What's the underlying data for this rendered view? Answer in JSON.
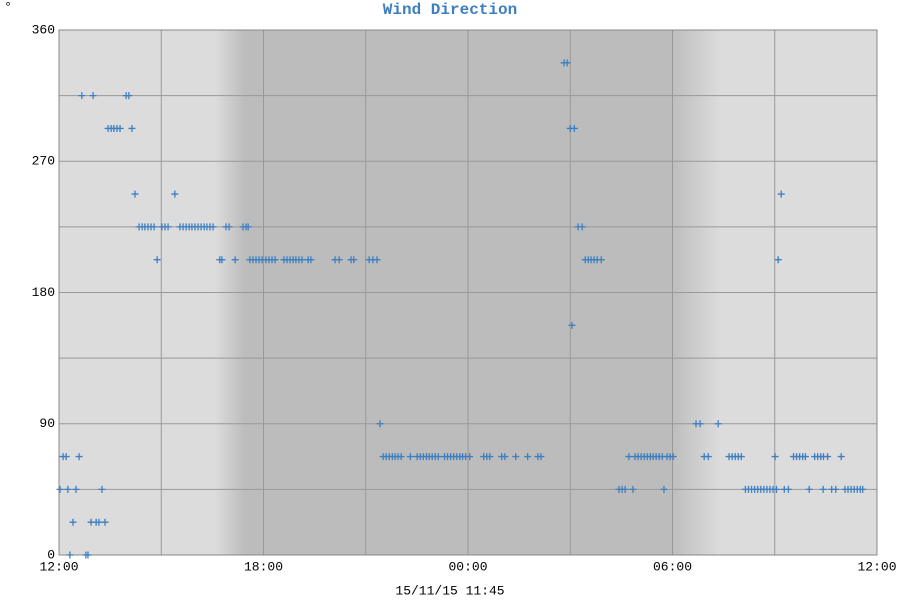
{
  "chart_data": {
    "type": "scatter",
    "title": "Wind Direction",
    "ylabel": "°",
    "xlabel": "15/11/15 11:45",
    "color": "#3d7fc1",
    "grid": true,
    "xlim": [
      0,
      24
    ],
    "ylim": [
      0,
      360
    ],
    "xticks": [
      {
        "value": 0,
        "label": "12:00"
      },
      {
        "value": 6,
        "label": "18:00"
      },
      {
        "value": 12,
        "label": "00:00"
      },
      {
        "value": 18,
        "label": "06:00"
      },
      {
        "value": 24,
        "label": "12:00"
      }
    ],
    "xminorticks": [
      3,
      9,
      15,
      21
    ],
    "yticks": [
      0,
      90,
      180,
      270,
      360
    ],
    "yminorticks": [
      45,
      135,
      225,
      315
    ],
    "x": [
      0.03,
      0.12,
      0.21,
      0.26,
      0.32,
      0.41,
      0.5,
      0.59,
      0.67,
      0.79,
      0.85,
      0.94,
      1.0,
      1.09,
      1.17,
      1.26,
      1.35,
      1.44,
      1.53,
      1.61,
      1.7,
      1.79,
      1.97,
      2.05,
      2.14,
      2.23,
      2.35,
      2.44,
      2.52,
      2.61,
      2.7,
      2.79,
      2.88,
      3.02,
      3.11,
      3.2,
      3.4,
      3.55,
      3.64,
      3.73,
      3.82,
      3.9,
      3.99,
      4.08,
      4.17,
      4.26,
      4.34,
      4.43,
      4.52,
      4.72,
      4.78,
      4.9,
      4.99,
      5.17,
      5.4,
      5.49,
      5.55,
      5.6,
      5.69,
      5.78,
      5.87,
      5.96,
      6.07,
      6.16,
      6.25,
      6.34,
      6.6,
      6.69,
      6.78,
      6.87,
      6.95,
      7.04,
      7.13,
      7.31,
      7.39,
      8.1,
      8.22,
      8.57,
      8.65,
      9.1,
      9.21,
      9.33,
      9.42,
      9.51,
      9.6,
      9.69,
      9.78,
      9.86,
      9.95,
      10.04,
      10.31,
      10.51,
      10.6,
      10.69,
      10.78,
      10.86,
      10.95,
      11.04,
      11.13,
      11.31,
      11.4,
      11.49,
      11.58,
      11.67,
      11.76,
      11.84,
      11.93,
      12.05,
      12.46,
      12.55,
      12.64,
      12.99,
      13.08,
      13.4,
      13.75,
      14.05,
      14.14,
      14.82,
      14.91,
      15.0,
      15.05,
      15.12,
      15.23,
      15.35,
      15.44,
      15.53,
      15.61,
      15.7,
      15.79,
      15.91,
      16.43,
      16.52,
      16.61,
      16.72,
      16.84,
      16.9,
      16.99,
      17.08,
      17.17,
      17.26,
      17.35,
      17.43,
      17.52,
      17.61,
      17.7,
      17.75,
      17.84,
      17.93,
      18.02,
      18.69,
      18.81,
      18.93,
      19.05,
      19.34,
      19.66,
      19.75,
      19.84,
      19.93,
      20.02,
      20.14,
      20.23,
      20.32,
      20.41,
      20.5,
      20.59,
      20.68,
      20.77,
      20.86,
      20.95,
      21.01,
      21.05,
      21.1,
      21.19,
      21.28,
      21.4,
      21.55,
      21.64,
      21.73,
      21.82,
      21.9,
      22.01,
      22.17,
      22.26,
      22.35,
      22.42,
      22.43,
      22.55,
      22.67,
      22.79,
      22.95,
      23.06,
      23.15,
      23.24,
      23.33,
      23.42,
      23.51,
      23.58
    ],
    "values": [
      45,
      67.5,
      67.5,
      45,
      0,
      22.5,
      45,
      67.5,
      315,
      0,
      0,
      22.5,
      315,
      22.5,
      22.5,
      45,
      22.5,
      292.5,
      292.5,
      292.5,
      292.5,
      292.5,
      315,
      315,
      292.5,
      247.5,
      225,
      225,
      225,
      225,
      225,
      225,
      202.5,
      225,
      225,
      225,
      247.5,
      225,
      225,
      225,
      225,
      225,
      225,
      225,
      225,
      225,
      225,
      225,
      225,
      202.5,
      202.5,
      225,
      225,
      202.5,
      225,
      225,
      225,
      202.5,
      202.5,
      202.5,
      202.5,
      202.5,
      202.5,
      202.5,
      202.5,
      202.5,
      202.5,
      202.5,
      202.5,
      202.5,
      202.5,
      202.5,
      202.5,
      202.5,
      202.5,
      202.5,
      202.5,
      202.5,
      202.5,
      202.5,
      202.5,
      202.5,
      90,
      67.5,
      67.5,
      67.5,
      67.5,
      67.5,
      67.5,
      67.5,
      67.5,
      67.5,
      67.5,
      67.5,
      67.5,
      67.5,
      67.5,
      67.5,
      67.5,
      67.5,
      67.5,
      67.5,
      67.5,
      67.5,
      67.5,
      67.5,
      67.5,
      67.5,
      67.5,
      67.5,
      67.5,
      67.5,
      67.5,
      67.5,
      67.5,
      67.5,
      67.5,
      337.5,
      337.5,
      292.5,
      157.5,
      292.5,
      225,
      225,
      202.5,
      202.5,
      202.5,
      202.5,
      202.5,
      202.5,
      45,
      45,
      45,
      67.5,
      45,
      67.5,
      67.5,
      67.5,
      67.5,
      67.5,
      67.5,
      67.5,
      67.5,
      67.5,
      67.5,
      45,
      67.5,
      67.5,
      67.5,
      90,
      90,
      67.5,
      67.5,
      90,
      67.5,
      67.5,
      67.5,
      67.5,
      67.5,
      45,
      45,
      45,
      45,
      45,
      45,
      45,
      45,
      45,
      45,
      67.5,
      45,
      202.5,
      247.5,
      45,
      45,
      67.5,
      67.5,
      67.5,
      67.5,
      67.5,
      45,
      67.5,
      67.5,
      67.5,
      45,
      67.5,
      67.5,
      45,
      45,
      67.5,
      45,
      45,
      45,
      45,
      45,
      45,
      45
    ]
  }
}
